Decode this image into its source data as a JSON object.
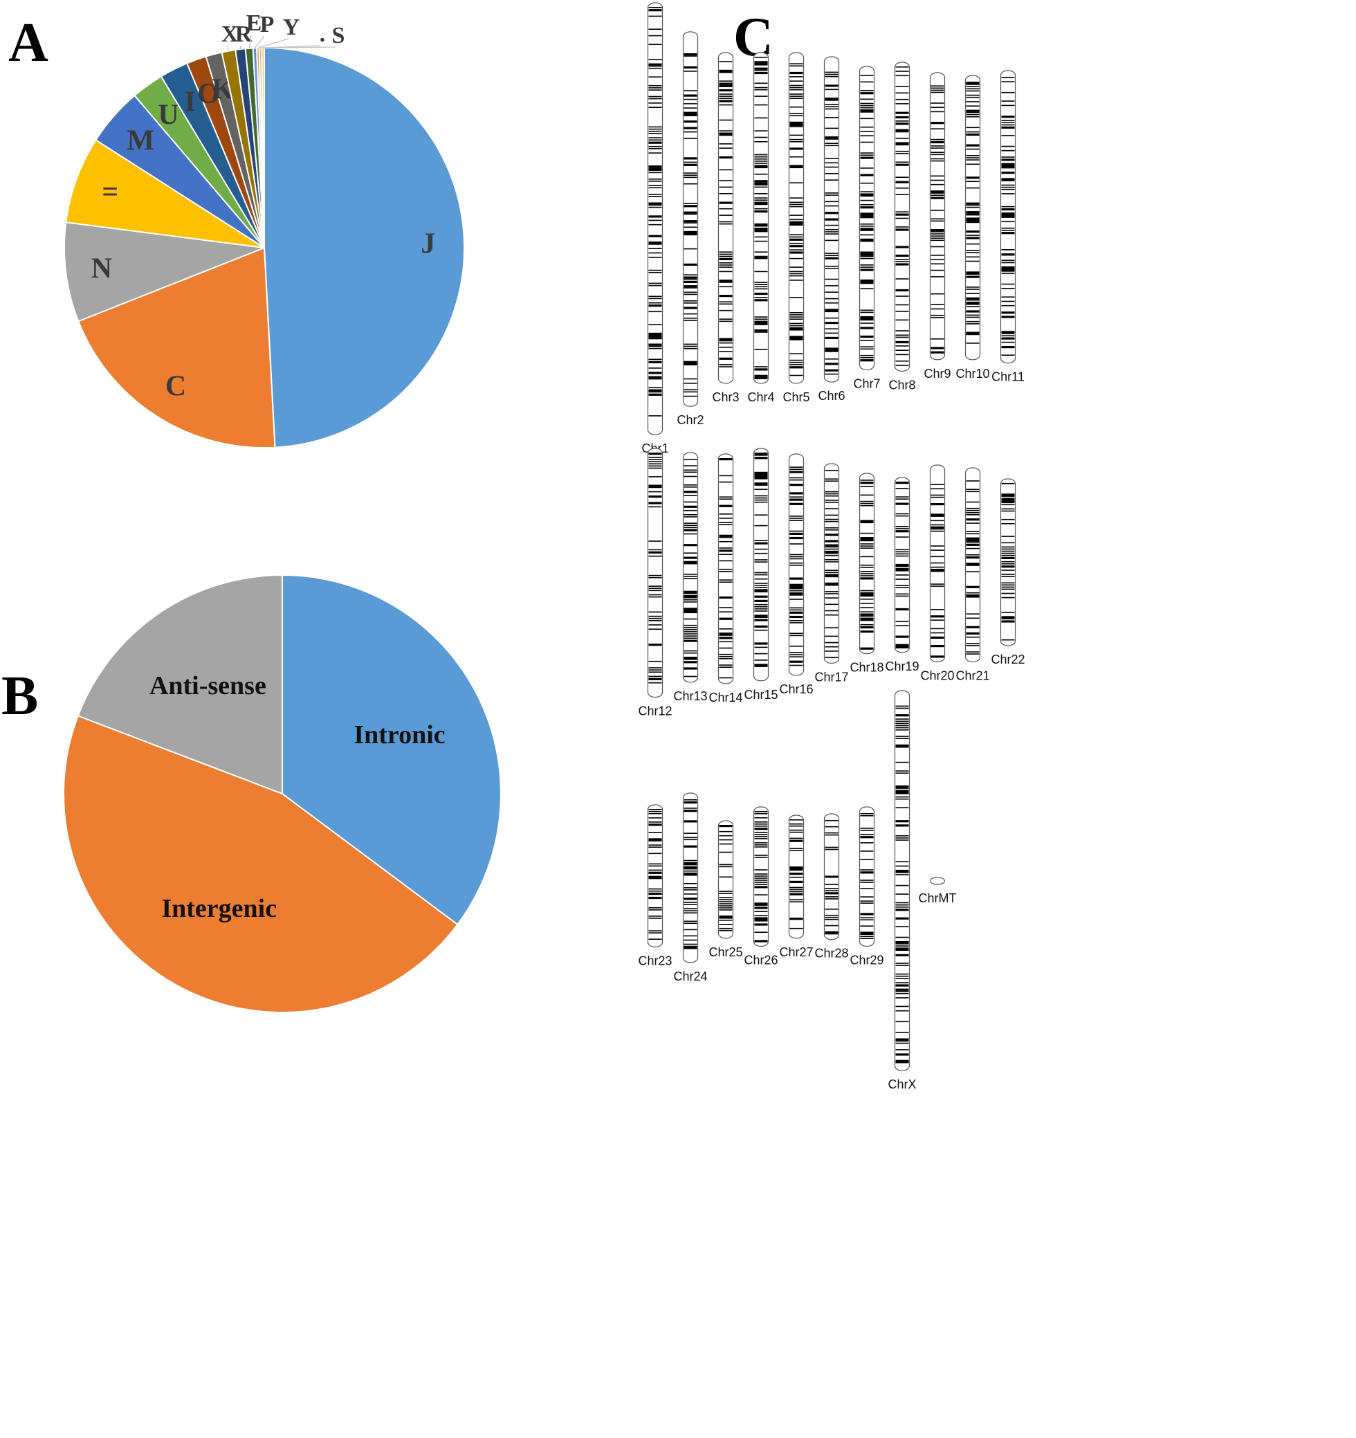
{
  "panels": {
    "a": "A",
    "b": "B",
    "c": "C"
  },
  "chart_data": [
    {
      "type": "pie",
      "title": "A",
      "slices": [
        {
          "label": "J",
          "value": 49.0,
          "color": "#5b9bd5"
        },
        {
          "label": "C",
          "value": 19.8,
          "color": "#ed7d31"
        },
        {
          "label": "N",
          "value": 8.0,
          "color": "#a5a5a5"
        },
        {
          "label": "=",
          "value": 7.0,
          "color": "#ffc000"
        },
        {
          "label": "M",
          "value": 4.7,
          "color": "#4472c4"
        },
        {
          "label": "U",
          "value": 2.6,
          "color": "#70ad47"
        },
        {
          "label": "I",
          "value": 2.3,
          "color": "#255e91"
        },
        {
          "label": "O",
          "value": 1.6,
          "color": "#9e480e"
        },
        {
          "label": "K",
          "value": 1.3,
          "color": "#636363"
        },
        {
          "label": "X",
          "value": 1.1,
          "color": "#997300"
        },
        {
          "label": "R",
          "value": 0.8,
          "color": "#264478"
        },
        {
          "label": "E",
          "value": 0.6,
          "color": "#43682b"
        },
        {
          "label": "P",
          "value": 0.3,
          "color": "#698ed0"
        },
        {
          "label": "Y",
          "value": 0.2,
          "color": "#f1975a"
        },
        {
          "label": ".",
          "value": 0.2,
          "color": "#b7b7b7"
        },
        {
          "label": "S",
          "value": 0.2,
          "color": "#ffcd33"
        }
      ]
    },
    {
      "type": "pie",
      "title": "B",
      "slices": [
        {
          "label": "Intronic",
          "value": 35.2,
          "color": "#5b9bd5"
        },
        {
          "label": "Intergenic",
          "value": 45.6,
          "color": "#ed7d31"
        },
        {
          "label": "Anti-sense",
          "value": 19.2,
          "color": "#a5a5a5"
        }
      ]
    },
    {
      "type": "ideogram",
      "title": "C",
      "chromosomes": [
        {
          "name": "Chr1",
          "length": 158
        },
        {
          "name": "Chr2",
          "length": 137
        },
        {
          "name": "Chr3",
          "length": 121
        },
        {
          "name": "Chr4",
          "length": 121
        },
        {
          "name": "Chr5",
          "length": 121
        },
        {
          "name": "Chr6",
          "length": 119
        },
        {
          "name": "Chr7",
          "length": 111
        },
        {
          "name": "Chr8",
          "length": 113
        },
        {
          "name": "Chr9",
          "length": 105
        },
        {
          "name": "Chr10",
          "length": 104
        },
        {
          "name": "Chr11",
          "length": 107
        },
        {
          "name": "Chr12",
          "length": 91
        },
        {
          "name": "Chr13",
          "length": 84
        },
        {
          "name": "Chr14",
          "length": 84
        },
        {
          "name": "Chr15",
          "length": 85
        },
        {
          "name": "Chr16",
          "length": 81
        },
        {
          "name": "Chr17",
          "length": 73
        },
        {
          "name": "Chr18",
          "length": 66
        },
        {
          "name": "Chr19",
          "length": 64
        },
        {
          "name": "Chr20",
          "length": 72
        },
        {
          "name": "Chr21",
          "length": 71
        },
        {
          "name": "Chr22",
          "length": 61
        },
        {
          "name": "Chr23",
          "length": 52
        },
        {
          "name": "Chr24",
          "length": 62
        },
        {
          "name": "Chr25",
          "length": 43
        },
        {
          "name": "Chr26",
          "length": 51
        },
        {
          "name": "Chr27",
          "length": 45
        },
        {
          "name": "Chr28",
          "length": 46
        },
        {
          "name": "Chr29",
          "length": 51
        },
        {
          "name": "ChrX",
          "length": 139
        },
        {
          "name": "ChrMT",
          "length": 0.02
        }
      ]
    }
  ]
}
